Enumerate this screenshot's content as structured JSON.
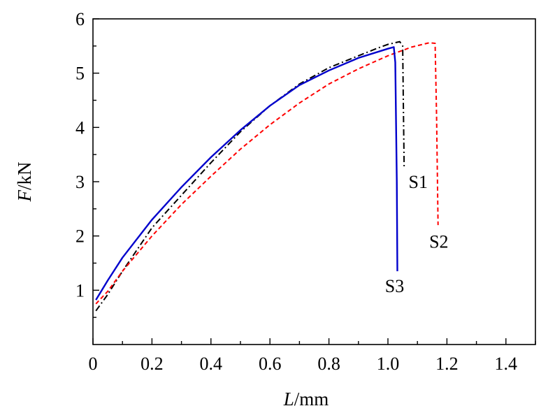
{
  "chart_data": {
    "type": "line",
    "title": "",
    "xlabel": {
      "italic": "L",
      "unit": "/mm"
    },
    "ylabel": {
      "italic": "F",
      "unit": "/kN"
    },
    "xlim": [
      0,
      1.5
    ],
    "ylim": [
      0,
      6
    ],
    "xticks": [
      0,
      0.2,
      0.4,
      0.6,
      0.8,
      1.0,
      1.2,
      1.4
    ],
    "xtick_labels": [
      "0",
      "0.2",
      "0.4",
      "0.6",
      "0.8",
      "1.0",
      "1.2",
      "1.4"
    ],
    "yticks": [
      1,
      2,
      3,
      4,
      5,
      6
    ],
    "ytick_labels": [
      "1",
      "2",
      "3",
      "4",
      "5",
      "6"
    ],
    "x_origin_label": "0",
    "grid": false,
    "legend": "none",
    "series": [
      {
        "name": "S1",
        "color": "#000000",
        "style": "dashdot",
        "points": [
          [
            0.01,
            0.62
          ],
          [
            0.05,
            0.92
          ],
          [
            0.1,
            1.35
          ],
          [
            0.2,
            2.15
          ],
          [
            0.3,
            2.75
          ],
          [
            0.4,
            3.35
          ],
          [
            0.5,
            3.92
          ],
          [
            0.6,
            4.4
          ],
          [
            0.7,
            4.8
          ],
          [
            0.8,
            5.1
          ],
          [
            0.9,
            5.32
          ],
          [
            0.96,
            5.45
          ],
          [
            1.0,
            5.53
          ],
          [
            1.04,
            5.58
          ],
          [
            1.05,
            5.5
          ],
          [
            1.052,
            4.6
          ],
          [
            1.055,
            3.25
          ]
        ],
        "label_at": [
          1.07,
          3.0
        ]
      },
      {
        "name": "S2",
        "color": "#ff0000",
        "style": "dashed",
        "points": [
          [
            0.01,
            0.75
          ],
          [
            0.05,
            0.98
          ],
          [
            0.1,
            1.35
          ],
          [
            0.2,
            2.0
          ],
          [
            0.3,
            2.58
          ],
          [
            0.4,
            3.1
          ],
          [
            0.5,
            3.6
          ],
          [
            0.6,
            4.05
          ],
          [
            0.7,
            4.45
          ],
          [
            0.8,
            4.8
          ],
          [
            0.9,
            5.08
          ],
          [
            1.0,
            5.32
          ],
          [
            1.08,
            5.48
          ],
          [
            1.14,
            5.56
          ],
          [
            1.16,
            5.55
          ],
          [
            1.165,
            4.2
          ],
          [
            1.17,
            2.2
          ]
        ],
        "label_at": [
          1.14,
          1.9
        ]
      },
      {
        "name": "S3",
        "color": "#0000cc",
        "style": "solid",
        "points": [
          [
            0.01,
            0.82
          ],
          [
            0.05,
            1.18
          ],
          [
            0.1,
            1.6
          ],
          [
            0.2,
            2.3
          ],
          [
            0.3,
            2.9
          ],
          [
            0.4,
            3.45
          ],
          [
            0.5,
            3.95
          ],
          [
            0.6,
            4.4
          ],
          [
            0.7,
            4.78
          ],
          [
            0.8,
            5.05
          ],
          [
            0.9,
            5.28
          ],
          [
            1.0,
            5.45
          ],
          [
            1.02,
            5.48
          ],
          [
            1.025,
            5.2
          ],
          [
            1.03,
            3.0
          ],
          [
            1.032,
            1.35
          ]
        ],
        "label_at": [
          0.99,
          1.08
        ]
      }
    ]
  }
}
